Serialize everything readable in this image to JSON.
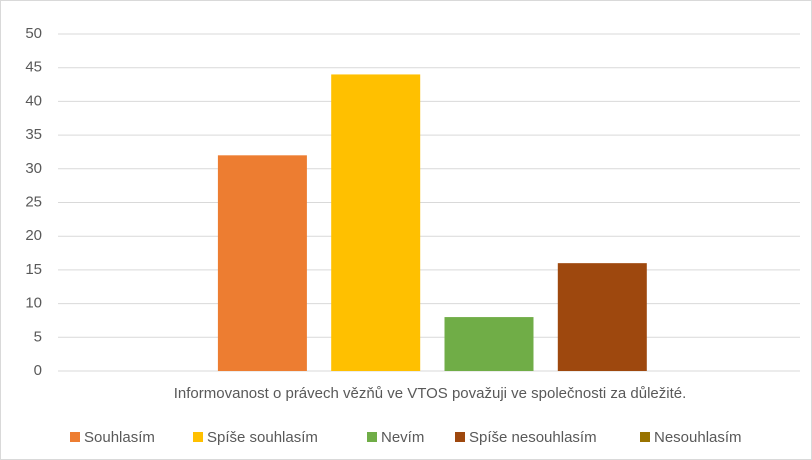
{
  "chart_data": {
    "type": "bar",
    "categories": [
      "Informovanost o právech vězňů ve VTOS považuji ve společnosti za důležité."
    ],
    "series": [
      {
        "name": "Souhlasím",
        "color": "#ed7d31",
        "values": [
          32
        ]
      },
      {
        "name": "Spíše souhlasím",
        "color": "#ffc000",
        "values": [
          44
        ]
      },
      {
        "name": "Nevím",
        "color": "#70ad47",
        "values": [
          8
        ]
      },
      {
        "name": "Spíše nesouhlasím",
        "color": "#9e480e",
        "values": [
          16
        ]
      },
      {
        "name": "Nesouhlasím",
        "color": "#997300",
        "values": [
          0
        ]
      }
    ],
    "ylim": [
      0,
      50
    ],
    "yticks": [
      0,
      5,
      10,
      15,
      20,
      25,
      30,
      35,
      40,
      45,
      50
    ],
    "grid": true,
    "legend": "bottom"
  }
}
